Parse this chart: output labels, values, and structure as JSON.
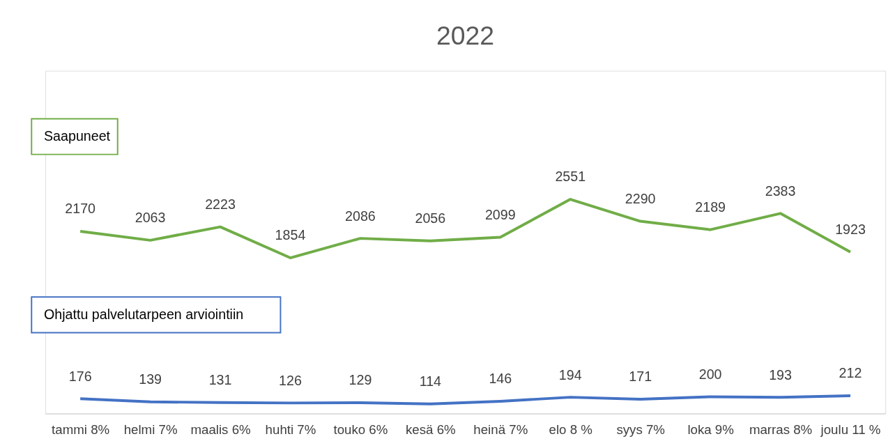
{
  "chart_data": {
    "type": "line",
    "title": "2022",
    "categories": [
      "tammi 8%",
      "helmi 7%",
      "maalis 6%",
      "huhti 7%",
      "touko 6%",
      "kesä 6%",
      "heinä 7%",
      "elo 8  %",
      "syys  7%",
      "loka 9%",
      "marras 8%",
      "joulu 11 %"
    ],
    "series": [
      {
        "name": "Saapuneet",
        "color": "#70ad47",
        "values": [
          2170,
          2063,
          2223,
          1854,
          2086,
          2056,
          2099,
          2551,
          2290,
          2189,
          2383,
          1923
        ]
      },
      {
        "name": "Ohjattu palvelutarpeen arviointiin",
        "color": "#4472c4",
        "values": [
          176,
          139,
          131,
          126,
          129,
          114,
          146,
          194,
          171,
          200,
          193,
          212
        ]
      }
    ],
    "data_labels": true
  }
}
